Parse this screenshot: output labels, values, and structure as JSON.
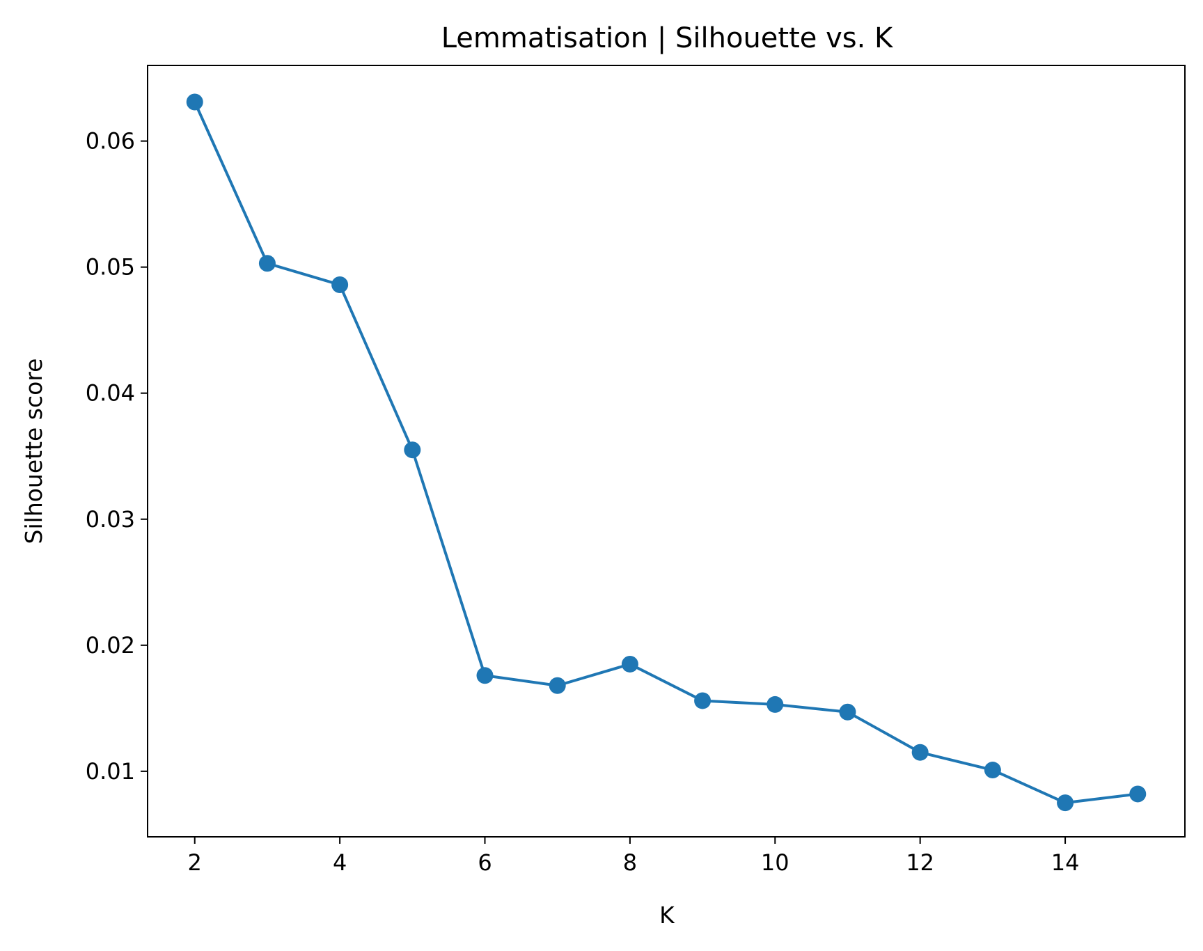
{
  "chart_data": {
    "type": "line",
    "title": "Lemmatisation | Silhouette vs. K",
    "xlabel": "K",
    "ylabel": "Silhouette score",
    "x": [
      2,
      3,
      4,
      5,
      6,
      7,
      8,
      9,
      10,
      11,
      12,
      13,
      14,
      15
    ],
    "series": [
      {
        "values": [
          0.0631,
          0.0503,
          0.0486,
          0.0355,
          0.0176,
          0.0168,
          0.0185,
          0.0156,
          0.0153,
          0.0147,
          0.0115,
          0.0101,
          0.0075,
          0.0082
        ],
        "color": "#1f77b4",
        "marker": "circle"
      }
    ],
    "xlim": [
      1.35,
      15.65
    ],
    "ylim": [
      0.0048,
      0.066
    ],
    "xticks": [
      2,
      4,
      6,
      8,
      10,
      12,
      14
    ],
    "xtick_labels": [
      "2",
      "4",
      "6",
      "8",
      "10",
      "12",
      "14"
    ],
    "yticks": [
      0.01,
      0.02,
      0.03,
      0.04,
      0.05,
      0.06
    ],
    "ytick_labels": [
      "0.01",
      "0.02",
      "0.03",
      "0.04",
      "0.05",
      "0.06"
    ],
    "grid": false,
    "legend": "none"
  }
}
